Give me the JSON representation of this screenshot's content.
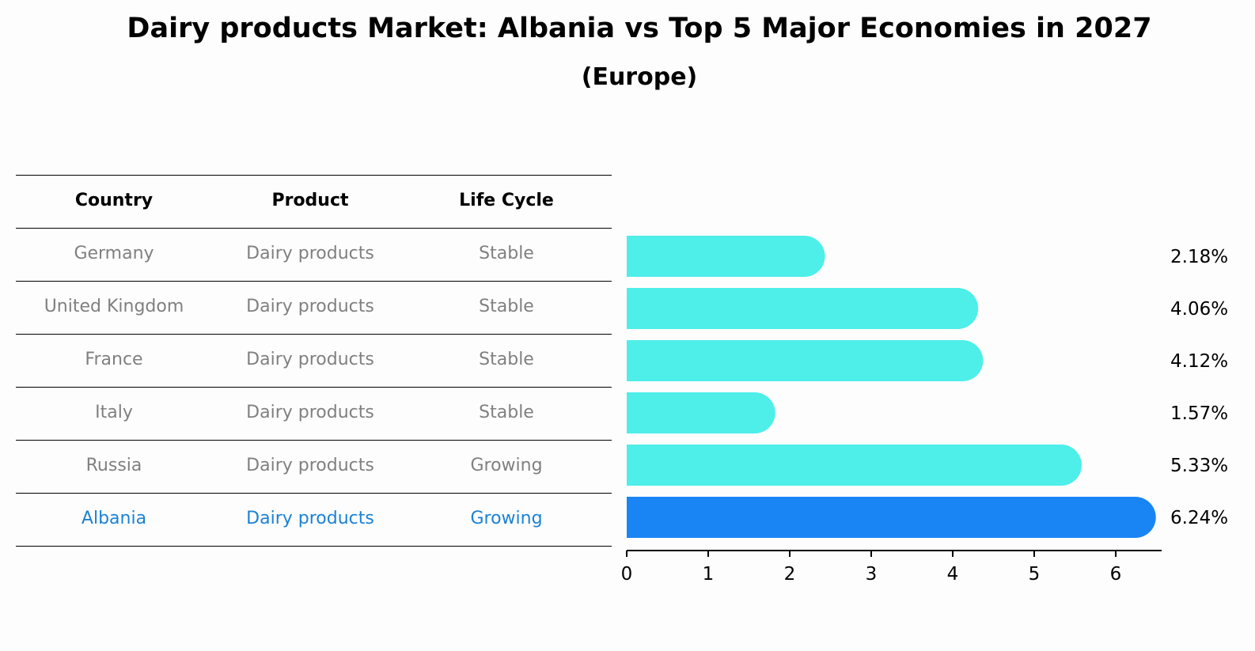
{
  "title": "Dairy products Market: Albania vs Top 5 Major Economies in 2027",
  "subtitle": "(Europe)",
  "table": {
    "headers": [
      "Country",
      "Product",
      "Life Cycle"
    ],
    "rows": [
      [
        "Germany",
        "Dairy products",
        "Stable"
      ],
      [
        "United Kingdom",
        "Dairy products",
        "Stable"
      ],
      [
        "France",
        "Dairy products",
        "Stable"
      ],
      [
        "Italy",
        "Dairy products",
        "Stable"
      ],
      [
        "Russia",
        "Dairy products",
        "Growing"
      ],
      [
        "Albania",
        "Dairy products",
        "Growing"
      ]
    ]
  },
  "colors": {
    "bar": "#4eeee9",
    "highlight_bar": "#1985f5",
    "highlight_text": "#1b82d6",
    "muted_text": "#808080"
  },
  "chart_data": {
    "type": "bar",
    "orientation": "horizontal",
    "categories": [
      "Germany",
      "United Kingdom",
      "France",
      "Italy",
      "Russia",
      "Albania"
    ],
    "values": [
      2.18,
      4.06,
      4.12,
      1.57,
      5.33,
      6.24
    ],
    "value_labels": [
      "2.18%",
      "4.06%",
      "4.12%",
      "1.57%",
      "5.33%",
      "6.24%"
    ],
    "highlight": "Albania",
    "xlim": [
      0,
      6.5
    ],
    "xticks": [
      0,
      1,
      2,
      3,
      4,
      5,
      6
    ],
    "grid": false
  }
}
